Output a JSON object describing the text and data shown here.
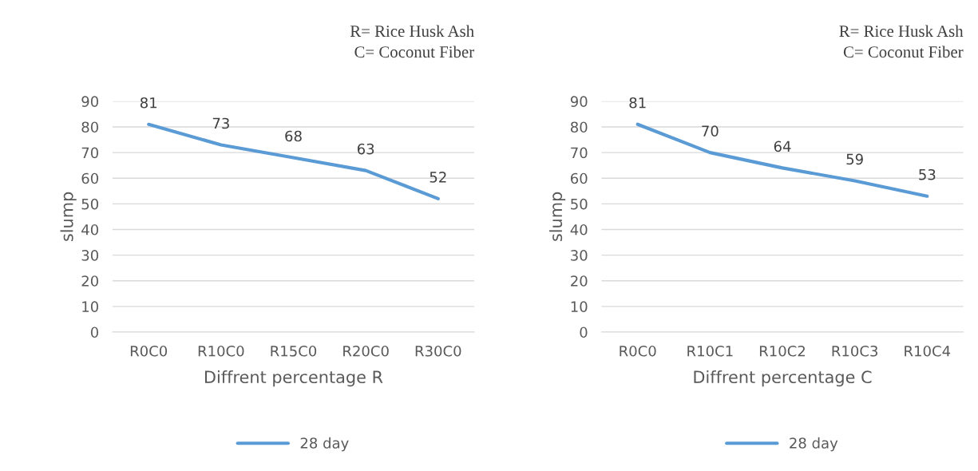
{
  "chart_data": [
    {
      "type": "line",
      "xlabel": "Diffrent percentage R",
      "ylabel": "slump",
      "categories": [
        "R0C0",
        "R10C0",
        "R15C0",
        "R20C0",
        "R30C0"
      ],
      "series": [
        {
          "name": "28 day",
          "color": "#5b9bd5",
          "values": [
            81,
            73,
            68,
            63,
            52
          ]
        }
      ],
      "ylim": [
        0,
        90
      ],
      "yticks": [
        0,
        10,
        20,
        30,
        40,
        50,
        60,
        70,
        80,
        90
      ],
      "grid": "y",
      "legend": "bottom",
      "data_labels": true,
      "marker": "none",
      "line_style": "solid",
      "annotations": [
        "R= Rice Husk Ash",
        "C= Coconut Fiber"
      ]
    },
    {
      "type": "line",
      "xlabel": "Diffrent percentage C",
      "ylabel": "slump",
      "categories": [
        "R0C0",
        "R10C1",
        "R10C2",
        "R10C3",
        "R10C4"
      ],
      "series": [
        {
          "name": "28 day",
          "color": "#5b9bd5",
          "values": [
            81,
            70,
            64,
            59,
            53
          ]
        }
      ],
      "ylim": [
        0,
        90
      ],
      "yticks": [
        0,
        10,
        20,
        30,
        40,
        50,
        60,
        70,
        80,
        90
      ],
      "grid": "y",
      "legend": "bottom",
      "data_labels": true,
      "marker": "none",
      "line_style": "solid",
      "annotations": [
        "R= Rice Husk Ash",
        "C= Coconut Fiber"
      ]
    }
  ]
}
